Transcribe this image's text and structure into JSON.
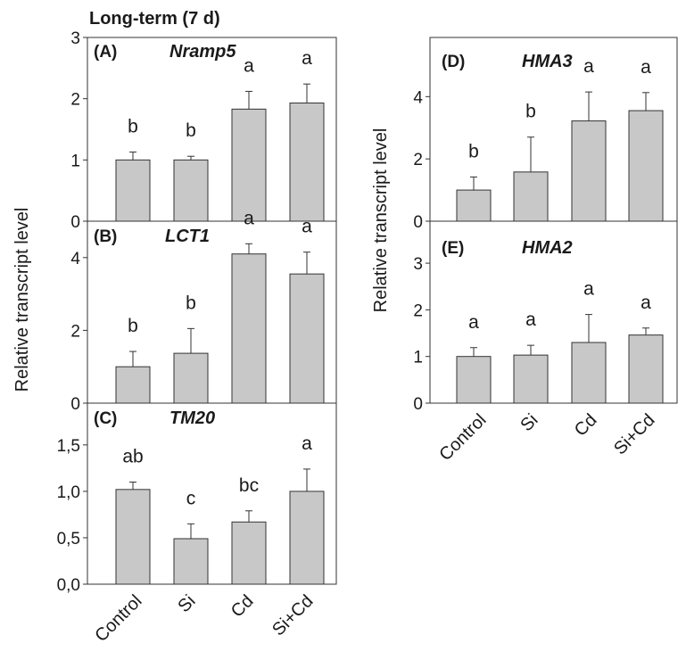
{
  "figure_title": "Long-term (7 d)",
  "ylabel": "Relative transcript level",
  "categories": [
    "Control",
    "Si",
    "Cd",
    "Si+Cd"
  ],
  "chart_data": [
    {
      "type": "bar",
      "panel": "(A)",
      "gene": "Nramp5",
      "categories": [
        "Control",
        "Si",
        "Cd",
        "Si+Cd"
      ],
      "values": [
        1.0,
        1.0,
        1.83,
        1.93
      ],
      "errors": [
        0.13,
        0.06,
        0.29,
        0.31
      ],
      "letters": [
        "b",
        "b",
        "a",
        "a"
      ],
      "ylim": [
        0,
        3
      ],
      "ticks": [
        "0",
        "1",
        "2",
        "3"
      ],
      "ylabel": "Relative transcript level"
    },
    {
      "type": "bar",
      "panel": "(B)",
      "gene": "LCT1",
      "categories": [
        "Control",
        "Si",
        "Cd",
        "Si+Cd"
      ],
      "values": [
        1.0,
        1.37,
        4.1,
        3.55
      ],
      "errors": [
        0.42,
        0.68,
        0.28,
        0.6
      ],
      "letters": [
        "b",
        "b",
        "a",
        "a"
      ],
      "ylim": [
        0,
        5
      ],
      "ticks": [
        "0",
        "2",
        "4"
      ],
      "ylabel": "Relative transcript level"
    },
    {
      "type": "bar",
      "panel": "(C)",
      "gene": "TM20",
      "categories": [
        "Control",
        "Si",
        "Cd",
        "Si+Cd"
      ],
      "values": [
        1.02,
        0.49,
        0.67,
        1.0
      ],
      "errors": [
        0.08,
        0.16,
        0.12,
        0.24
      ],
      "letters": [
        "ab",
        "c",
        "bc",
        "a"
      ],
      "ylim": [
        0,
        1.95
      ],
      "ticks": [
        "0,0",
        "0,5",
        "1,0",
        "1,5"
      ],
      "ylabel": "Relative transcript level"
    },
    {
      "type": "bar",
      "panel": "(D)",
      "gene": "HMA3",
      "categories": [
        "Control",
        "Si",
        "Cd",
        "Si+Cd"
      ],
      "values": [
        1.0,
        1.58,
        3.22,
        3.55
      ],
      "errors": [
        0.42,
        1.12,
        0.93,
        0.58
      ],
      "letters": [
        "b",
        "b",
        "a",
        "a"
      ],
      "ylim": [
        0,
        5.9
      ],
      "ticks": [
        "0",
        "2",
        "4"
      ],
      "ylabel": "Relative transcript level"
    },
    {
      "type": "bar",
      "panel": "(E)",
      "gene": "HMA2",
      "categories": [
        "Control",
        "Si",
        "Cd",
        "Si+Cd"
      ],
      "values": [
        1.0,
        1.03,
        1.3,
        1.46
      ],
      "errors": [
        0.19,
        0.21,
        0.6,
        0.15
      ],
      "letters": [
        "a",
        "a",
        "a",
        "a"
      ],
      "ylim": [
        0,
        3.9
      ],
      "ticks": [
        "0",
        "1",
        "2",
        "3"
      ],
      "ylabel": "Relative transcript level"
    }
  ]
}
